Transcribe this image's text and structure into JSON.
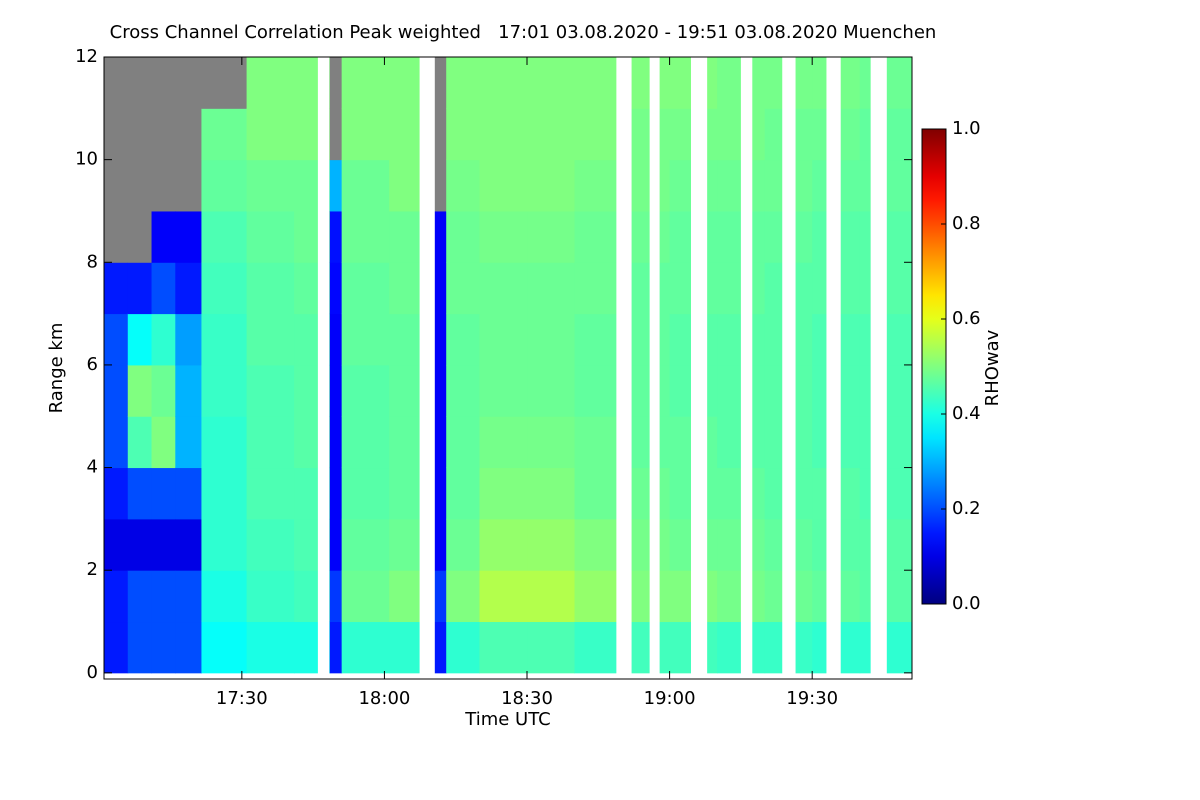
{
  "chart_data": {
    "type": "heatmap",
    "title": "Cross Channel Correlation Peak weighted   17:01 03.08.2020 - 19:51 03.08.2020 Muenchen",
    "x_label": "Time UTC",
    "y_label": "Range km",
    "colorbar_label": "RHOwav",
    "colormap": "jet",
    "missing_color": "#808080",
    "gap_color": "#ffffff",
    "xlim": [
      1,
      171
    ],
    "ylim": [
      -0.12,
      12
    ],
    "xticks": [
      {
        "value": 30,
        "label": "17:30"
      },
      {
        "value": 60,
        "label": "18:00"
      },
      {
        "value": 90,
        "label": "18:30"
      },
      {
        "value": 120,
        "label": "19:00"
      },
      {
        "value": 150,
        "label": "19:30"
      }
    ],
    "yticks": [
      0,
      2,
      4,
      6,
      8,
      10,
      12
    ],
    "clim": [
      0,
      1
    ],
    "cticks": [
      {
        "value": 0,
        "label": "0.0"
      },
      {
        "value": 0.2,
        "label": "0.2"
      },
      {
        "value": 0.4,
        "label": "0.4"
      },
      {
        "value": 0.6,
        "label": "0.6"
      },
      {
        "value": 0.8,
        "label": "0.8"
      },
      {
        "value": 1,
        "label": "1.0"
      }
    ],
    "xbins": [
      1,
      6,
      11,
      16,
      21.5,
      31,
      41,
      48.5,
      51,
      61,
      70.5,
      73,
      80,
      90,
      100,
      110,
      120,
      130,
      140,
      150,
      160,
      171
    ],
    "ybins": [
      0,
      1,
      2,
      3,
      4,
      5,
      6,
      7,
      8,
      9,
      10,
      11,
      12
    ],
    "values": [
      [
        0.15,
        0.15,
        0.1,
        0.15,
        0.2,
        0.2,
        0.2,
        0.15,
        null,
        null,
        null,
        null
      ],
      [
        0.2,
        0.2,
        0.1,
        0.2,
        0.45,
        0.5,
        0.38,
        0.15,
        null,
        null,
        null,
        null
      ],
      [
        0.2,
        0.2,
        0.1,
        0.2,
        0.5,
        0.48,
        0.42,
        0.2,
        0.12,
        null,
        null,
        null
      ],
      [
        0.2,
        0.2,
        0.1,
        0.2,
        0.3,
        0.3,
        0.28,
        0.15,
        0.12,
        null,
        null,
        null
      ],
      [
        0.38,
        0.4,
        0.42,
        0.42,
        0.42,
        0.43,
        0.43,
        0.44,
        0.45,
        0.47,
        0.48,
        null
      ],
      [
        0.4,
        0.43,
        0.44,
        0.45,
        0.45,
        0.45,
        0.46,
        0.46,
        0.47,
        0.48,
        0.5,
        0.5
      ],
      [
        0.4,
        0.44,
        0.45,
        0.45,
        0.46,
        0.46,
        0.46,
        0.47,
        0.48,
        0.48,
        0.5,
        0.5
      ],
      [
        0.15,
        0.18,
        0.12,
        0.12,
        0.12,
        0.12,
        0.12,
        0.13,
        0.14,
        0.3,
        null,
        null
      ],
      [
        0.42,
        0.48,
        0.47,
        0.46,
        0.46,
        0.46,
        0.47,
        0.47,
        0.48,
        0.48,
        0.5,
        0.5
      ],
      [
        0.42,
        0.5,
        0.48,
        0.47,
        0.47,
        0.47,
        0.47,
        0.48,
        0.48,
        0.5,
        0.5,
        0.5
      ],
      [
        0.15,
        0.18,
        0.12,
        0.12,
        0.12,
        0.12,
        0.12,
        0.12,
        0.12,
        null,
        null,
        null
      ],
      [
        0.42,
        0.5,
        0.48,
        0.47,
        0.47,
        0.47,
        0.47,
        0.48,
        0.48,
        0.49,
        0.5,
        0.5
      ],
      [
        0.45,
        0.55,
        0.52,
        0.5,
        0.49,
        0.48,
        0.48,
        0.48,
        0.49,
        0.5,
        0.5,
        0.5
      ],
      [
        0.45,
        0.55,
        0.52,
        0.5,
        0.49,
        0.48,
        0.48,
        0.48,
        0.49,
        0.5,
        0.5,
        0.5
      ],
      [
        0.43,
        0.52,
        0.5,
        0.48,
        0.48,
        0.47,
        0.47,
        0.48,
        0.48,
        0.49,
        0.5,
        0.5
      ],
      [
        0.44,
        0.5,
        0.49,
        0.48,
        0.47,
        0.47,
        0.47,
        0.47,
        0.48,
        0.49,
        0.49,
        0.5
      ],
      [
        0.44,
        0.5,
        0.48,
        0.47,
        0.47,
        0.46,
        0.46,
        0.47,
        0.47,
        0.48,
        0.49,
        0.5
      ],
      [
        0.43,
        0.49,
        0.48,
        0.47,
        0.46,
        0.46,
        0.46,
        0.47,
        0.47,
        0.48,
        0.49,
        0.49
      ],
      [
        0.43,
        0.48,
        0.47,
        0.46,
        0.46,
        0.46,
        0.46,
        0.46,
        0.47,
        0.48,
        0.48,
        0.49
      ],
      [
        0.42,
        0.47,
        0.46,
        0.46,
        0.45,
        0.45,
        0.45,
        0.46,
        0.46,
        0.47,
        0.48,
        0.49
      ],
      [
        0.42,
        0.46,
        0.46,
        0.45,
        0.45,
        0.45,
        0.45,
        0.46,
        0.46,
        0.47,
        0.47,
        0.48
      ]
    ],
    "gaps": [
      [
        46,
        48.4
      ],
      [
        67.4,
        70.6
      ],
      [
        108.8,
        112
      ],
      [
        115.8,
        117.9
      ],
      [
        124.5,
        127.9
      ],
      [
        135,
        137.4
      ],
      [
        143.7,
        146.5
      ],
      [
        153,
        156
      ],
      [
        162.3,
        165.7
      ]
    ]
  }
}
